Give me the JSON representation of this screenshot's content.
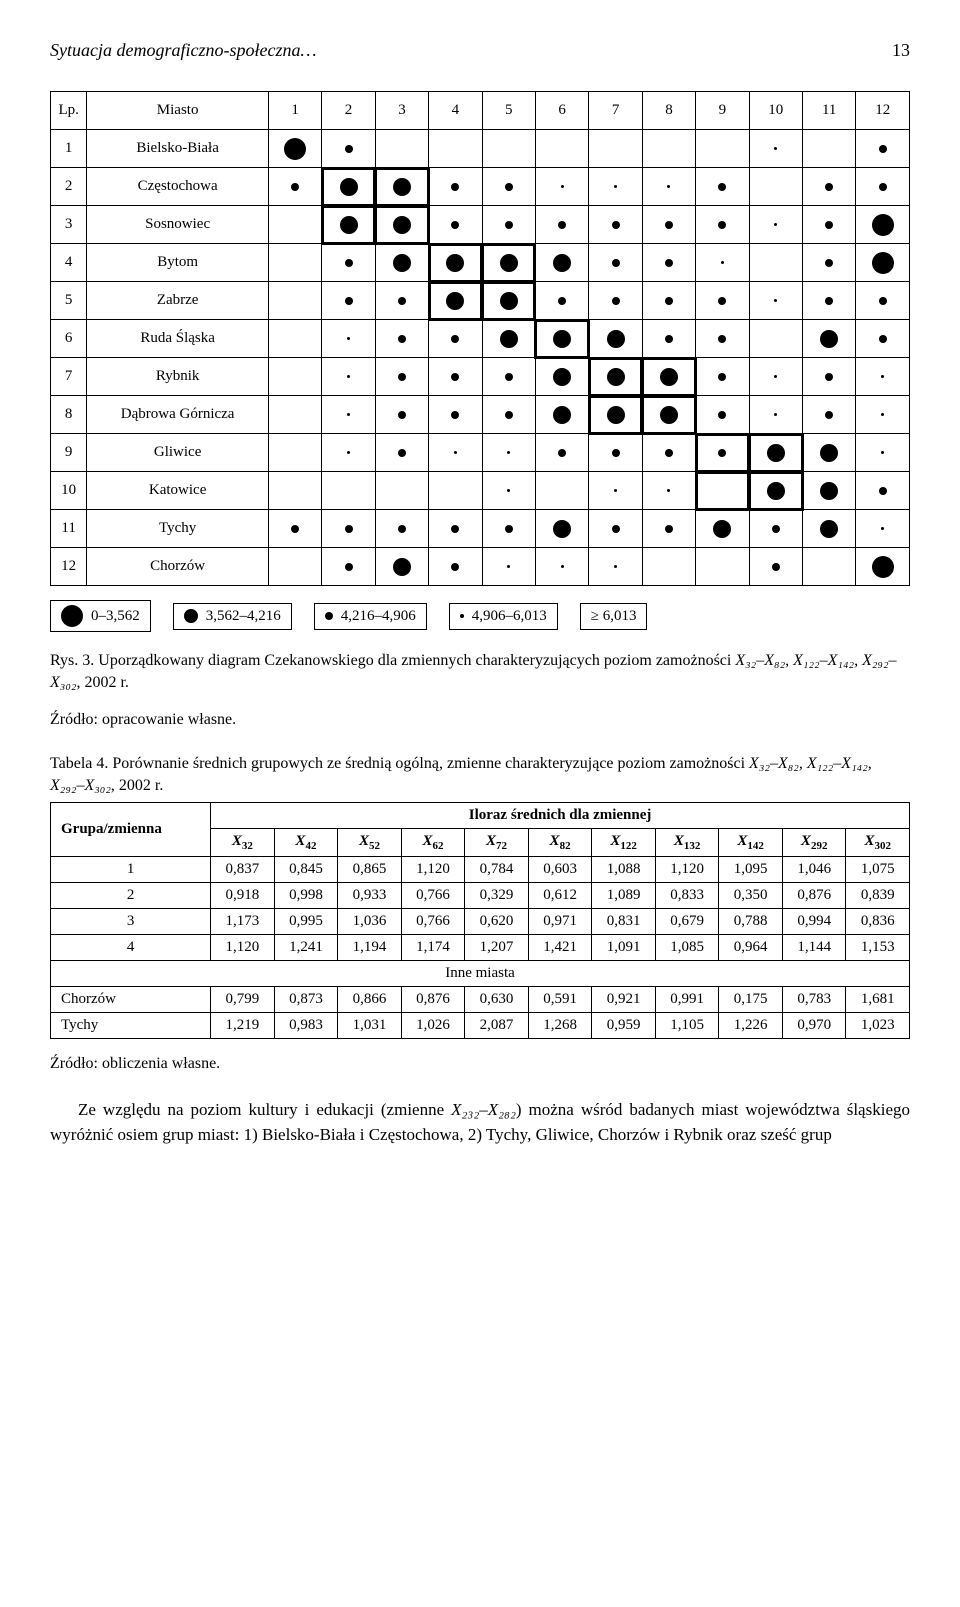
{
  "header": {
    "title": "Sytuacja demograficzno-społeczna…",
    "page": "13"
  },
  "matrix": {
    "lp_label": "Lp.",
    "city_label": "Miasto",
    "col_labels": [
      "1",
      "2",
      "3",
      "4",
      "5",
      "6",
      "7",
      "8",
      "9",
      "10",
      "11",
      "12"
    ],
    "rows": [
      {
        "n": "1",
        "city": "Bielsko-Biała",
        "sizes": [
          22,
          8,
          0,
          0,
          0,
          0,
          0,
          0,
          0,
          3,
          0,
          8
        ]
      },
      {
        "n": "2",
        "city": "Częstochowa",
        "sizes": [
          8,
          18,
          18,
          8,
          8,
          3,
          3,
          3,
          8,
          0,
          8,
          8
        ]
      },
      {
        "n": "3",
        "city": "Sosnowiec",
        "sizes": [
          0,
          18,
          18,
          8,
          8,
          8,
          8,
          8,
          8,
          3,
          8,
          22
        ]
      },
      {
        "n": "4",
        "city": "Bytom",
        "sizes": [
          0,
          8,
          18,
          18,
          18,
          18,
          8,
          8,
          3,
          0,
          8,
          22
        ]
      },
      {
        "n": "5",
        "city": "Zabrze",
        "sizes": [
          0,
          8,
          8,
          18,
          18,
          8,
          8,
          8,
          8,
          3,
          8,
          8
        ]
      },
      {
        "n": "6",
        "city": "Ruda Śląska",
        "sizes": [
          0,
          3,
          8,
          8,
          18,
          18,
          18,
          8,
          8,
          0,
          18,
          8
        ]
      },
      {
        "n": "7",
        "city": "Rybnik",
        "sizes": [
          0,
          3,
          8,
          8,
          8,
          18,
          18,
          18,
          8,
          3,
          8,
          3
        ]
      },
      {
        "n": "8",
        "city": "Dąbrowa Górnicza",
        "sizes": [
          0,
          3,
          8,
          8,
          8,
          18,
          18,
          18,
          8,
          3,
          8,
          3
        ]
      },
      {
        "n": "9",
        "city": "Gliwice",
        "sizes": [
          0,
          3,
          8,
          3,
          3,
          8,
          8,
          8,
          8,
          18,
          18,
          3
        ]
      },
      {
        "n": "10",
        "city": "Katowice",
        "sizes": [
          0,
          0,
          0,
          0,
          3,
          0,
          3,
          3,
          0,
          18,
          18,
          8
        ]
      },
      {
        "n": "11",
        "city": "Tychy",
        "sizes": [
          8,
          8,
          8,
          8,
          8,
          18,
          8,
          8,
          18,
          8,
          18,
          3
        ]
      },
      {
        "n": "12",
        "city": "Chorzów",
        "sizes": [
          0,
          8,
          18,
          8,
          3,
          3,
          3,
          0,
          0,
          8,
          0,
          22
        ]
      }
    ],
    "block_rects": [
      {
        "r0": 2,
        "c0": 2,
        "r1": 3,
        "c1": 3
      },
      {
        "r0": 4,
        "c0": 4,
        "r1": 5,
        "c1": 5
      },
      {
        "r0": 6,
        "c0": 6,
        "r1": 6,
        "c1": 6
      },
      {
        "r0": 7,
        "c0": 7,
        "r1": 8,
        "c1": 8
      },
      {
        "r0": 9,
        "c0": 9,
        "r1": 10,
        "c1": 10
      }
    ]
  },
  "legend": [
    {
      "size": 22,
      "label": "0–3,562"
    },
    {
      "size": 14,
      "label": "3,562–4,216"
    },
    {
      "size": 8,
      "label": "4,216–4,906"
    },
    {
      "size": 4,
      "label": "4,906–6,013"
    },
    {
      "size": 0,
      "label": "≥ 6,013"
    }
  ],
  "fig_caption_a": "Rys. 3. Uporządkowany diagram Czekanowskiego dla zmiennych charakteryzujących poziom zamożności ",
  "fig_caption_b": ", 2002 r.",
  "fig_source": "Źródło: opracowanie własne.",
  "tab4_title_a": "Tabela 4. Porównanie średnich grupowych ze średnią ogólną, zmienne charakteryzujące poziom zamożności ",
  "tab4_title_b": ", 2002 r.",
  "cmp": {
    "group_label": "Grupa/zmienna",
    "iloraz_label": "Iloraz średnich dla zmiennej",
    "col_subs": [
      "32",
      "42",
      "52",
      "62",
      "72",
      "82",
      "122",
      "132",
      "142",
      "292",
      "302"
    ],
    "rows": [
      {
        "label": "1",
        "v": [
          "0,837",
          "0,845",
          "0,865",
          "1,120",
          "0,784",
          "0,603",
          "1,088",
          "1,120",
          "1,095",
          "1,046",
          "1,075"
        ]
      },
      {
        "label": "2",
        "v": [
          "0,918",
          "0,998",
          "0,933",
          "0,766",
          "0,329",
          "0,612",
          "1,089",
          "0,833",
          "0,350",
          "0,876",
          "0,839"
        ]
      },
      {
        "label": "3",
        "v": [
          "1,173",
          "0,995",
          "1,036",
          "0,766",
          "0,620",
          "0,971",
          "0,831",
          "0,679",
          "0,788",
          "0,994",
          "0,836"
        ]
      },
      {
        "label": "4",
        "v": [
          "1,120",
          "1,241",
          "1,194",
          "1,174",
          "1,207",
          "1,421",
          "1,091",
          "1,085",
          "0,964",
          "1,144",
          "1,153"
        ]
      }
    ],
    "inne_label": "Inne miasta",
    "inne_rows": [
      {
        "label": "Chorzów",
        "v": [
          "0,799",
          "0,873",
          "0,866",
          "0,876",
          "0,630",
          "0,591",
          "0,921",
          "0,991",
          "0,175",
          "0,783",
          "1,681"
        ]
      },
      {
        "label": "Tychy",
        "v": [
          "1,219",
          "0,983",
          "1,031",
          "1,026",
          "2,087",
          "1,268",
          "0,959",
          "1,105",
          "1,226",
          "0,970",
          "1,023"
        ]
      }
    ]
  },
  "cmp_source": "Źródło: obliczenia własne.",
  "para_a": "Ze względu na poziom kultury i edukacji (zmienne ",
  "para_b": ") można wśród badanych miast województwa śląskiego wyróżnić osiem grup miast: 1) Bielsko-Biała i Częstochowa, 2) Tychy, Gliwice, Chorzów i Rybnik oraz sześć grup",
  "var_spans": {
    "fig": "X₃₂–X₈₂, X₁₂₂–X₁₄₂, X₂₉₂–X₃₀₂",
    "para": "X₂₃₂–X₂₈₂"
  }
}
